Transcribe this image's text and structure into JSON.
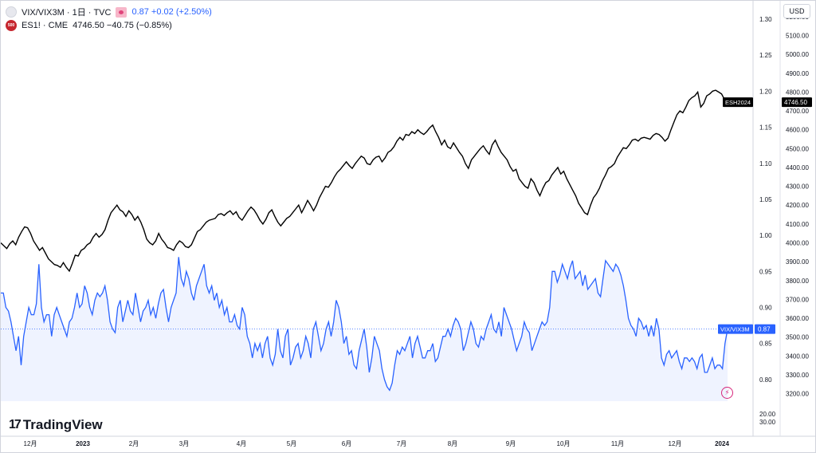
{
  "header": {
    "main_title": "VIX/VIX3M · 1日 · TVC",
    "main_values": "0.87 +0.02 (+2.50%)",
    "sub_title": "ES1! · CME",
    "sub_values": "4746.50 −40.75 (−0.85%)",
    "sub_icon_text": "500",
    "currency": "USD"
  },
  "brand": {
    "name": "TradingView",
    "mark": "17"
  },
  "colors": {
    "es_line": "#000000",
    "vix_line": "#2962ff",
    "vix_fill": "#e8eeff",
    "background": "#ffffff",
    "grid": "#f0f3fa"
  },
  "icons": {
    "vix_symbol": "gray-circle-icon",
    "es_symbol": "sp500-badge-icon",
    "visibility": "eye-icon",
    "alert": "lightning-icon",
    "logo": "tradingview-logo-icon"
  },
  "chart_data": {
    "type": "line",
    "x_axis_labels": [
      "12月",
      "2023",
      "2月",
      "3月",
      "4月",
      "5月",
      "6月",
      "7月",
      "8月",
      "9月",
      "10月",
      "11月",
      "12月",
      "2024"
    ],
    "axes": {
      "ratio": {
        "ticks": [
          "1.30",
          "1.25",
          "1.20",
          "1.15",
          "1.10",
          "1.05",
          "1.00",
          "0.95",
          "0.90",
          "0.85",
          "0.80"
        ],
        "range": [
          0.77,
          1.31
        ]
      },
      "es": {
        "ticks": [
          "5200.00",
          "5100.00",
          "5000.00",
          "4900.00",
          "4800.00",
          "4700.00",
          "4600.00",
          "4500.00",
          "4400.00",
          "4300.00",
          "4200.00",
          "4100.00",
          "4000.00",
          "3900.00",
          "3800.00",
          "3700.00",
          "3600.00",
          "3500.00",
          "3400.00",
          "3300.00",
          "3200.00"
        ],
        "range": [
          3160,
          5225
        ]
      },
      "extra_ticks": [
        "20.00",
        "30.00"
      ]
    },
    "series": [
      {
        "name": "ESH2024",
        "axis": "es",
        "last_label": "4746.50",
        "values": [
          4000,
          3985,
          3970,
          3995,
          4010,
          3990,
          4030,
          4060,
          4085,
          4080,
          4050,
          4010,
          3985,
          3960,
          3975,
          3945,
          3915,
          3900,
          3885,
          3880,
          3870,
          3895,
          3870,
          3850,
          3890,
          3935,
          3930,
          3960,
          3970,
          3990,
          4000,
          4030,
          4050,
          4030,
          4045,
          4070,
          4120,
          4160,
          4180,
          4200,
          4175,
          4165,
          4140,
          4170,
          4150,
          4120,
          4140,
          4110,
          4070,
          4020,
          4000,
          3990,
          4010,
          4050,
          4020,
          4000,
          3975,
          3970,
          3960,
          3990,
          4010,
          4000,
          3980,
          3975,
          3990,
          4025,
          4060,
          4070,
          4090,
          4110,
          4120,
          4125,
          4130,
          4150,
          4155,
          4145,
          4160,
          4170,
          4150,
          4165,
          4135,
          4120,
          4145,
          4170,
          4190,
          4175,
          4150,
          4120,
          4100,
          4125,
          4160,
          4175,
          4140,
          4110,
          4090,
          4110,
          4130,
          4140,
          4160,
          4180,
          4200,
          4160,
          4190,
          4225,
          4200,
          4170,
          4200,
          4240,
          4270,
          4300,
          4295,
          4320,
          4350,
          4375,
          4390,
          4410,
          4430,
          4410,
          4395,
          4420,
          4440,
          4460,
          4450,
          4420,
          4415,
          4440,
          4455,
          4460,
          4430,
          4450,
          4480,
          4490,
          4510,
          4540,
          4560,
          4545,
          4575,
          4570,
          4590,
          4580,
          4600,
          4585,
          4575,
          4590,
          4610,
          4625,
          4590,
          4560,
          4520,
          4545,
          4510,
          4500,
          4530,
          4505,
          4480,
          4460,
          4420,
          4395,
          4440,
          4460,
          4480,
          4500,
          4515,
          4490,
          4470,
          4520,
          4545,
          4510,
          4480,
          4460,
          4440,
          4405,
          4380,
          4390,
          4340,
          4320,
          4300,
          4290,
          4340,
          4320,
          4280,
          4250,
          4290,
          4320,
          4330,
          4360,
          4380,
          4400,
          4365,
          4380,
          4340,
          4310,
          4280,
          4250,
          4210,
          4185,
          4160,
          4150,
          4200,
          4240,
          4260,
          4290,
          4330,
          4360,
          4395,
          4405,
          4420,
          4455,
          4480,
          4505,
          4500,
          4520,
          4545,
          4550,
          4540,
          4555,
          4560,
          4555,
          4550,
          4570,
          4580,
          4575,
          4560,
          4540,
          4555,
          4600,
          4640,
          4680,
          4700,
          4690,
          4720,
          4755,
          4770,
          4780,
          4800,
          4720,
          4740,
          4780,
          4790,
          4805,
          4810,
          4800,
          4790,
          4760,
          4746.5
        ]
      },
      {
        "name": "VIX/VIX3M",
        "axis": "ratio",
        "last_label": "0.87",
        "values": [
          0.92,
          0.92,
          0.9,
          0.895,
          0.88,
          0.86,
          0.84,
          0.86,
          0.82,
          0.86,
          0.88,
          0.9,
          0.89,
          0.89,
          0.905,
          0.96,
          0.9,
          0.88,
          0.89,
          0.89,
          0.86,
          0.89,
          0.9,
          0.89,
          0.88,
          0.87,
          0.86,
          0.88,
          0.885,
          0.9,
          0.92,
          0.9,
          0.905,
          0.93,
          0.92,
          0.9,
          0.89,
          0.91,
          0.92,
          0.915,
          0.92,
          0.93,
          0.91,
          0.88,
          0.87,
          0.865,
          0.9,
          0.91,
          0.88,
          0.895,
          0.91,
          0.895,
          0.89,
          0.92,
          0.9,
          0.88,
          0.895,
          0.9,
          0.91,
          0.89,
          0.9,
          0.885,
          0.905,
          0.92,
          0.925,
          0.9,
          0.88,
          0.9,
          0.91,
          0.92,
          0.97,
          0.94,
          0.93,
          0.95,
          0.94,
          0.92,
          0.91,
          0.93,
          0.94,
          0.95,
          0.96,
          0.93,
          0.92,
          0.93,
          0.91,
          0.92,
          0.9,
          0.91,
          0.89,
          0.9,
          0.88,
          0.88,
          0.89,
          0.875,
          0.87,
          0.9,
          0.89,
          0.86,
          0.85,
          0.83,
          0.85,
          0.84,
          0.85,
          0.83,
          0.85,
          0.86,
          0.83,
          0.82,
          0.835,
          0.87,
          0.84,
          0.83,
          0.86,
          0.87,
          0.82,
          0.83,
          0.845,
          0.85,
          0.83,
          0.84,
          0.86,
          0.85,
          0.83,
          0.87,
          0.88,
          0.86,
          0.84,
          0.85,
          0.87,
          0.88,
          0.86,
          0.88,
          0.91,
          0.9,
          0.88,
          0.85,
          0.86,
          0.835,
          0.84,
          0.82,
          0.815,
          0.84,
          0.855,
          0.87,
          0.845,
          0.81,
          0.83,
          0.86,
          0.85,
          0.84,
          0.815,
          0.8,
          0.79,
          0.785,
          0.795,
          0.82,
          0.84,
          0.835,
          0.845,
          0.84,
          0.85,
          0.86,
          0.83,
          0.85,
          0.86,
          0.845,
          0.83,
          0.83,
          0.84,
          0.84,
          0.85,
          0.825,
          0.83,
          0.845,
          0.86,
          0.86,
          0.87,
          0.86,
          0.875,
          0.885,
          0.88,
          0.87,
          0.84,
          0.85,
          0.865,
          0.88,
          0.87,
          0.85,
          0.845,
          0.86,
          0.855,
          0.87,
          0.88,
          0.89,
          0.87,
          0.865,
          0.88,
          0.86,
          0.9,
          0.89,
          0.88,
          0.87,
          0.855,
          0.84,
          0.85,
          0.86,
          0.88,
          0.87,
          0.865,
          0.84,
          0.85,
          0.86,
          0.87,
          0.88,
          0.875,
          0.88,
          0.9,
          0.95,
          0.95,
          0.935,
          0.945,
          0.96,
          0.95,
          0.94,
          0.955,
          0.965,
          0.94,
          0.945,
          0.95,
          0.93,
          0.945,
          0.925,
          0.93,
          0.935,
          0.94,
          0.92,
          0.915,
          0.94,
          0.965,
          0.96,
          0.955,
          0.95,
          0.96,
          0.955,
          0.945,
          0.93,
          0.91,
          0.885,
          0.875,
          0.87,
          0.86,
          0.885,
          0.88,
          0.87,
          0.875,
          0.86,
          0.875,
          0.86,
          0.885,
          0.87,
          0.83,
          0.82,
          0.835,
          0.84,
          0.83,
          0.835,
          0.84,
          0.825,
          0.815,
          0.83,
          0.83,
          0.825,
          0.83,
          0.825,
          0.815,
          0.83,
          0.835,
          0.81,
          0.81,
          0.82,
          0.83,
          0.815,
          0.82,
          0.82,
          0.815,
          0.85,
          0.87
        ]
      }
    ],
    "grid": false,
    "legend": "top-left"
  }
}
